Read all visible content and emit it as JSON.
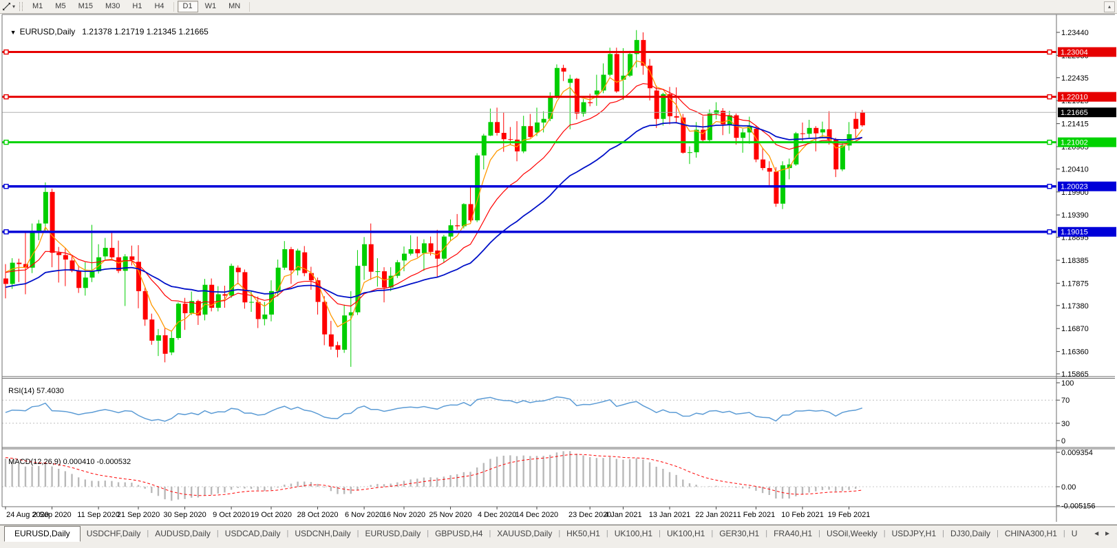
{
  "icons": {
    "cursor_tool": "crosshair-arrows",
    "tool_dropdown": "▾",
    "toolbar_up": "▴",
    "chart_menu_caret": "▼",
    "nav_left": "◄",
    "nav_right": "►"
  },
  "toolbar": {
    "timeframes": [
      "M1",
      "M5",
      "M15",
      "M30",
      "H1",
      "H4",
      "D1",
      "W1",
      "MN"
    ],
    "active_timeframe": "D1"
  },
  "chart_header": {
    "symbol_label": "EURUSD,Daily",
    "ohlc_text": "1.21378 1.21719 1.21345 1.21665"
  },
  "price_axis": {
    "ticks": [
      "1.23440",
      "1.22930",
      "1.22435",
      "1.21925",
      "1.21415",
      "1.20905",
      "1.20410",
      "1.19900",
      "1.19390",
      "1.18895",
      "1.18385",
      "1.17875",
      "1.17380",
      "1.16870",
      "1.16360",
      "1.15865"
    ],
    "current_price": {
      "label": "1.21665",
      "value": 1.21665,
      "bg": "#000000",
      "line_color": "#b0b0b0"
    }
  },
  "hlines": [
    {
      "label": "1.23004",
      "value": 1.23004,
      "color": "#e60000",
      "width": 3
    },
    {
      "label": "1.22010",
      "value": 1.2201,
      "color": "#e60000",
      "width": 3
    },
    {
      "label": "1.21002",
      "value": 1.21002,
      "color": "#00d200",
      "width": 3
    },
    {
      "label": "1.20023",
      "value": 1.20023,
      "color": "#0000d8",
      "width": 3.5
    },
    {
      "label": "1.19015",
      "value": 1.19015,
      "color": "#0000d8",
      "width": 3.5
    }
  ],
  "chart_data": {
    "type": "candlestick",
    "symbol": "EURUSD",
    "timeframe": "Daily",
    "bull_color": "#00ce00",
    "bear_color": "#ff0000",
    "ylim": [
      1.1582,
      1.2382
    ],
    "x_labels": [
      [
        "24 Aug 2020",
        0
      ],
      [
        "2 Sep 2020",
        7
      ],
      [
        "11 Sep 2020",
        14
      ],
      [
        "21 Sep 2020",
        20
      ],
      [
        "30 Sep 2020",
        27
      ],
      [
        "9 Oct 2020",
        34
      ],
      [
        "19 Oct 2020",
        40
      ],
      [
        "28 Oct 2020",
        47
      ],
      [
        "6 Nov 2020",
        54
      ],
      [
        "16 Nov 2020",
        60
      ],
      [
        "25 Nov 2020",
        67
      ],
      [
        "4 Dec 2020",
        74
      ],
      [
        "14 Dec 2020",
        80
      ],
      [
        "23 Dec 2020",
        88
      ],
      [
        "4 Jan 2021",
        93
      ],
      [
        "13 Jan 2021",
        100
      ],
      [
        "22 Jan 2021",
        107
      ],
      [
        "1 Feb 2021",
        113
      ],
      [
        "10 Feb 2021",
        120
      ],
      [
        "19 Feb 2021",
        127
      ]
    ],
    "pre_closes": [
      1.1803,
      1.1862,
      1.1857,
      1.1878,
      1.1785,
      1.1737,
      1.1739,
      1.1782,
      1.1811,
      1.1831,
      1.1924,
      1.1933,
      1.184,
      1.187,
      1.1797
    ],
    "candles": [
      [
        1.1798,
        1.183,
        1.1754,
        1.1786
      ],
      [
        1.1786,
        1.1843,
        1.1775,
        1.1833
      ],
      [
        1.1833,
        1.1842,
        1.179,
        1.183
      ],
      [
        1.183,
        1.1901,
        1.1763,
        1.1822
      ],
      [
        1.1822,
        1.192,
        1.181,
        1.1903
      ],
      [
        1.1903,
        1.1928,
        1.1883,
        1.192
      ],
      [
        1.192,
        1.2011,
        1.19,
        1.199
      ],
      [
        1.199,
        1.1997,
        1.1823,
        1.1855
      ],
      [
        1.1855,
        1.1868,
        1.1789,
        1.185
      ],
      [
        1.185,
        1.1865,
        1.1781,
        1.184
      ],
      [
        1.1838,
        1.1849,
        1.1812,
        1.1815
      ],
      [
        1.1815,
        1.1827,
        1.1766,
        1.1777
      ],
      [
        1.1777,
        1.1834,
        1.176,
        1.18
      ],
      [
        1.18,
        1.1917,
        1.179,
        1.1814
      ],
      [
        1.1814,
        1.1874,
        1.1809,
        1.1845
      ],
      [
        1.1847,
        1.1888,
        1.1839,
        1.1866
      ],
      [
        1.1866,
        1.19,
        1.184,
        1.1845
      ],
      [
        1.1845,
        1.1882,
        1.181,
        1.1815
      ],
      [
        1.1815,
        1.1852,
        1.1737,
        1.1847
      ],
      [
        1.1847,
        1.1871,
        1.1827,
        1.1839
      ],
      [
        1.1835,
        1.1872,
        1.1732,
        1.177
      ],
      [
        1.177,
        1.1778,
        1.1693,
        1.1707
      ],
      [
        1.1707,
        1.172,
        1.1651,
        1.166
      ],
      [
        1.166,
        1.1686,
        1.1626,
        1.1672
      ],
      [
        1.1672,
        1.1688,
        1.1612,
        1.1631
      ],
      [
        1.1634,
        1.1683,
        1.1628,
        1.1666
      ],
      [
        1.1666,
        1.1745,
        1.1662,
        1.1742
      ],
      [
        1.1742,
        1.1755,
        1.1684,
        1.1721
      ],
      [
        1.1721,
        1.1769,
        1.1717,
        1.1748
      ],
      [
        1.1748,
        1.1751,
        1.1695,
        1.1716
      ],
      [
        1.1718,
        1.1797,
        1.1705,
        1.1784
      ],
      [
        1.1784,
        1.1798,
        1.1725,
        1.1733
      ],
      [
        1.1733,
        1.1781,
        1.1725,
        1.1763
      ],
      [
        1.1763,
        1.1782,
        1.1733,
        1.176
      ],
      [
        1.176,
        1.1831,
        1.1755,
        1.1826
      ],
      [
        1.1822,
        1.1827,
        1.1785,
        1.1812
      ],
      [
        1.1812,
        1.1818,
        1.1731,
        1.1745
      ],
      [
        1.1745,
        1.1771,
        1.1724,
        1.1746
      ],
      [
        1.1746,
        1.1758,
        1.1688,
        1.1708
      ],
      [
        1.1708,
        1.1746,
        1.1694,
        1.1718
      ],
      [
        1.1718,
        1.1794,
        1.1703,
        1.177
      ],
      [
        1.177,
        1.184,
        1.1758,
        1.1822
      ],
      [
        1.1822,
        1.1881,
        1.1817,
        1.1863
      ],
      [
        1.1863,
        1.1868,
        1.1786,
        1.1816
      ],
      [
        1.1816,
        1.1864,
        1.1805,
        1.186
      ],
      [
        1.1856,
        1.187,
        1.1803,
        1.181
      ],
      [
        1.181,
        1.1824,
        1.1773,
        1.1794
      ],
      [
        1.1794,
        1.18,
        1.1718,
        1.1746
      ],
      [
        1.1746,
        1.1759,
        1.165,
        1.1674
      ],
      [
        1.1674,
        1.1704,
        1.164,
        1.1647
      ],
      [
        1.165,
        1.1658,
        1.1623,
        1.164
      ],
      [
        1.164,
        1.174,
        1.1633,
        1.1716
      ],
      [
        1.1716,
        1.177,
        1.1602,
        1.1723
      ],
      [
        1.1723,
        1.1861,
        1.1717,
        1.1826
      ],
      [
        1.1826,
        1.189,
        1.1795,
        1.1874
      ],
      [
        1.1874,
        1.192,
        1.1795,
        1.1813
      ],
      [
        1.1813,
        1.1843,
        1.178,
        1.1814
      ],
      [
        1.1814,
        1.1823,
        1.1745,
        1.1778
      ],
      [
        1.1778,
        1.1823,
        1.177,
        1.1804
      ],
      [
        1.1804,
        1.1839,
        1.1799,
        1.1834
      ],
      [
        1.1838,
        1.1869,
        1.1814,
        1.1853
      ],
      [
        1.1853,
        1.1894,
        1.1849,
        1.1863
      ],
      [
        1.1863,
        1.1891,
        1.1845,
        1.1854
      ],
      [
        1.1854,
        1.1885,
        1.1815,
        1.1876
      ],
      [
        1.1876,
        1.1891,
        1.1849,
        1.1857
      ],
      [
        1.186,
        1.1906,
        1.18,
        1.1842
      ],
      [
        1.1842,
        1.1895,
        1.1833,
        1.1891
      ],
      [
        1.1891,
        1.1929,
        1.1881,
        1.1916
      ],
      [
        1.1916,
        1.1941,
        1.1906,
        1.1914
      ],
      [
        1.1914,
        1.1965,
        1.1909,
        1.1963
      ],
      [
        1.1963,
        1.2003,
        1.1924,
        1.1927
      ],
      [
        1.1927,
        1.2076,
        1.1923,
        1.2071
      ],
      [
        1.2071,
        1.2119,
        1.204,
        1.2115
      ],
      [
        1.2115,
        1.2175,
        1.2114,
        1.2145
      ],
      [
        1.2145,
        1.2177,
        1.2115,
        1.2121
      ],
      [
        1.2121,
        1.2166,
        1.2079,
        1.2107
      ],
      [
        1.2107,
        1.2134,
        1.2095,
        1.2106
      ],
      [
        1.2106,
        1.2147,
        1.2058,
        1.208
      ],
      [
        1.208,
        1.2159,
        1.2076,
        1.2136
      ],
      [
        1.2136,
        1.2163,
        1.211,
        1.2112
      ],
      [
        1.2122,
        1.2177,
        1.2114,
        1.2144
      ],
      [
        1.2144,
        1.2169,
        1.2122,
        1.2152
      ],
      [
        1.2152,
        1.2211,
        1.2147,
        1.2199
      ],
      [
        1.2199,
        1.2273,
        1.2197,
        1.2265
      ],
      [
        1.2265,
        1.2272,
        1.2236,
        1.2257
      ],
      [
        1.2232,
        1.225,
        1.2129,
        1.2241
      ],
      [
        1.2241,
        1.2243,
        1.2151,
        1.2164
      ],
      [
        1.2164,
        1.2196,
        1.2157,
        1.2189
      ],
      [
        1.2189,
        1.2208,
        1.218,
        1.2187
      ],
      [
        1.2206,
        1.225,
        1.2181,
        1.2215
      ],
      [
        1.2215,
        1.2275,
        1.2209,
        1.225
      ],
      [
        1.225,
        1.231,
        1.2246,
        1.2296
      ],
      [
        1.2296,
        1.231,
        1.221,
        1.2213
      ],
      [
        1.2239,
        1.2309,
        1.2194,
        1.2248
      ],
      [
        1.2248,
        1.2303,
        1.2245,
        1.2296
      ],
      [
        1.2296,
        1.2349,
        1.2266,
        1.2327
      ],
      [
        1.2327,
        1.2344,
        1.225,
        1.227
      ],
      [
        1.227,
        1.2285,
        1.2193,
        1.222
      ],
      [
        1.2215,
        1.2226,
        1.2132,
        1.2152
      ],
      [
        1.2152,
        1.221,
        1.2137,
        1.2207
      ],
      [
        1.2207,
        1.2223,
        1.214,
        1.2158
      ],
      [
        1.2158,
        1.2222,
        1.2142,
        1.2155
      ],
      [
        1.2155,
        1.2163,
        1.2075,
        1.2077
      ],
      [
        1.2077,
        1.2091,
        1.2052,
        1.2078
      ],
      [
        1.2078,
        1.2145,
        1.2066,
        1.2128
      ],
      [
        1.2128,
        1.2158,
        1.2101,
        1.2105
      ],
      [
        1.2105,
        1.2173,
        1.2102,
        1.2164
      ],
      [
        1.2164,
        1.2189,
        1.2151,
        1.2171
      ],
      [
        1.217,
        1.2176,
        1.2116,
        1.214
      ],
      [
        1.214,
        1.217,
        1.2119,
        1.216
      ],
      [
        1.216,
        1.2164,
        1.2095,
        1.211
      ],
      [
        1.211,
        1.213,
        1.2077,
        1.2122
      ],
      [
        1.2122,
        1.2157,
        1.2097,
        1.2136
      ],
      [
        1.213,
        1.2136,
        1.2056,
        1.2062
      ],
      [
        1.2062,
        1.2087,
        1.2038,
        1.2043
      ],
      [
        1.2043,
        1.2058,
        1.2003,
        1.2035
      ],
      [
        1.2035,
        1.2045,
        1.1957,
        1.1964
      ],
      [
        1.1964,
        1.2058,
        1.1952,
        1.2049
      ],
      [
        1.2043,
        1.2064,
        1.2018,
        1.2051
      ],
      [
        1.2051,
        1.2123,
        1.2048,
        1.212
      ],
      [
        1.212,
        1.2144,
        1.2103,
        1.2119
      ],
      [
        1.2119,
        1.215,
        1.211,
        1.2132
      ],
      [
        1.2132,
        1.2136,
        1.208,
        1.212
      ],
      [
        1.2122,
        1.2146,
        1.211,
        1.2129
      ],
      [
        1.2129,
        1.2169,
        1.2095,
        1.2106
      ],
      [
        1.2106,
        1.211,
        1.2023,
        1.204
      ],
      [
        1.204,
        1.2101,
        1.2036,
        1.2093
      ],
      [
        1.2093,
        1.2145,
        1.2082,
        1.2118
      ],
      [
        1.2152,
        1.2168,
        1.2108,
        1.213
      ],
      [
        1.21378,
        1.21719,
        1.21345,
        1.21665,
        "r"
      ]
    ],
    "moving_averages": [
      {
        "name": "ma-fast",
        "period": 5,
        "method": "ema",
        "seed": 1.1825,
        "color": "#ff9900",
        "width": 1.3
      },
      {
        "name": "ma-mid",
        "period": 15,
        "method": "ema",
        "seed": 1.1815,
        "color": "#ff0000",
        "width": 1.2
      },
      {
        "name": "ma-slow",
        "period": 34,
        "method": "ema",
        "seed": 1.1778,
        "color": "#0010c8",
        "width": 1.8
      }
    ]
  },
  "rsi": {
    "label": "RSI(14)",
    "value_text": "57.4030",
    "period": 14,
    "levels": [
      70,
      30
    ],
    "axis_labels": [
      "100",
      "70",
      "30",
      "0"
    ],
    "line_color": "#5b9bd5"
  },
  "macd": {
    "label": "MACD(12,26,9)",
    "values_text": "0.000410 -0.000532",
    "fast": 12,
    "slow": 26,
    "signal": 9,
    "axis_labels": [
      "0.009354",
      "0.00",
      "-0.005156"
    ],
    "axis_values": [
      0.009354,
      0,
      -0.005156
    ],
    "seeds": {
      "ema12": 1.1872,
      "ema26": 1.1782,
      "signal": 0.008
    },
    "bar_color": "#b9b9b9",
    "signal_color": "#ff0000"
  },
  "tabs": {
    "active_index": 0,
    "items": [
      "EURUSD,Daily",
      "USDCHF,Daily",
      "AUDUSD,Daily",
      "USDCAD,Daily",
      "USDCNH,Daily",
      "EURUSD,Daily",
      "GBPUSD,H4",
      "XAUUSD,Daily",
      "HK50,H1",
      "UK100,H1",
      "UK100,H1",
      "GER30,H1",
      "FRA40,H1",
      "USOil,Weekly",
      "USDJPY,H1",
      "DJ30,Daily",
      "CHINA300,H1",
      "U"
    ]
  }
}
